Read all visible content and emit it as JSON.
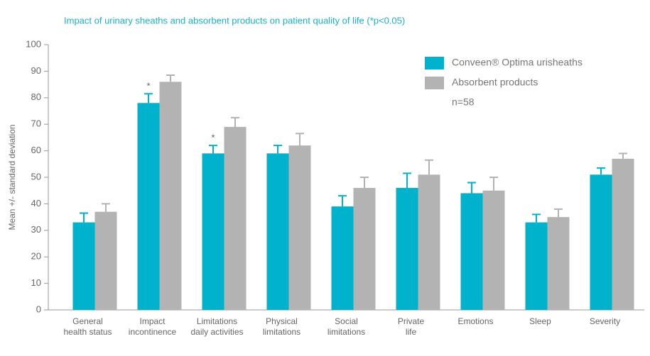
{
  "chart_data": {
    "type": "bar",
    "title": "Impact of urinary sheaths and absorbent products on patient quality of life (*p<0.05)",
    "y_label": "Mean +/- standard deviation",
    "note": "n=58",
    "categories": [
      "General\nhealth status",
      "Impact\nincontinence",
      "Limitations\ndaily activities",
      "Physical\nlimitations",
      "Social\nlimitations",
      "Private\nlife",
      "Emotions",
      "Sleep",
      "Severity"
    ],
    "series": [
      {
        "name": "Conveen® Optima urisheaths",
        "color": "#00b2cc",
        "values": [
          33,
          78,
          59,
          59,
          39,
          46,
          44,
          33,
          51
        ],
        "errors": [
          3.5,
          3.5,
          3,
          3,
          4,
          5.5,
          4,
          3,
          2.5
        ],
        "significance": [
          null,
          "*",
          "*",
          null,
          null,
          null,
          null,
          null,
          null
        ]
      },
      {
        "name": "Absorbent products",
        "color": "#b3b3b3",
        "values": [
          37,
          86,
          69,
          62,
          46,
          51,
          45,
          35,
          57
        ],
        "errors": [
          3,
          2.5,
          3.5,
          4.5,
          4,
          5.5,
          5,
          3,
          2
        ]
      }
    ],
    "ylim": [
      0,
      100
    ],
    "yticks": [
      0,
      10,
      20,
      30,
      40,
      50,
      60,
      70,
      80,
      90,
      100
    ],
    "grid": false
  }
}
